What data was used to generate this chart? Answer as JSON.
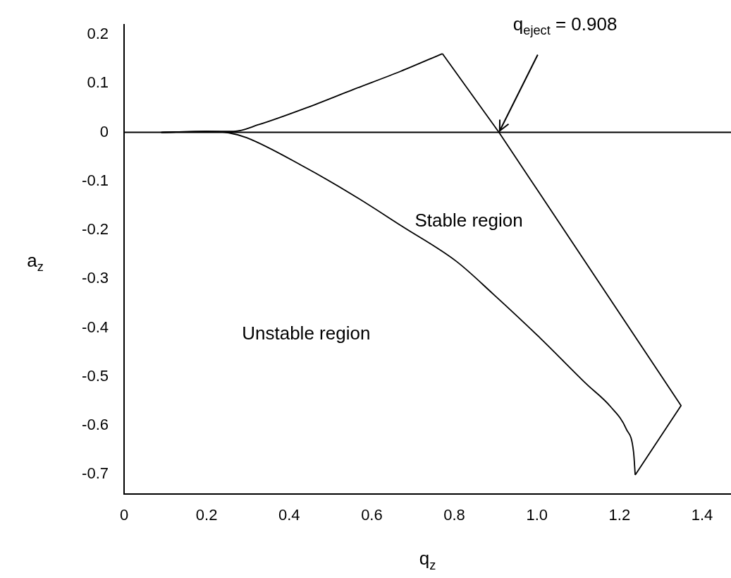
{
  "chart_data": {
    "type": "line",
    "xlabel": "q$_{z}$",
    "ylabel": "a$_{z}$",
    "xlim": [
      0,
      1.47
    ],
    "ylim": [
      -0.74,
      0.22
    ],
    "xticks": [
      0,
      0.2,
      0.4,
      0.6,
      0.8,
      {
        "value": 1,
        "label": "1.0"
      },
      1.2,
      1.4
    ],
    "yticks": [
      -0.7,
      -0.6,
      -0.5,
      -0.4,
      -0.3,
      -0.2,
      -0.1,
      0,
      0.1,
      0.2
    ],
    "grid": false,
    "legend": false,
    "marker": "none",
    "line_style": "solid",
    "series": [
      {
        "color": "#000000",
        "x": [
          0.09,
          0.195,
          0.266,
          0.327,
          0.441,
          0.556,
          0.67,
          0.771
        ],
        "values": [
          0,
          0.002,
          0.002,
          0.016,
          0.05,
          0.088,
          0.125,
          0.161
        ]
      },
      {
        "color": "#000000",
        "x": [
          0.771,
          0.908,
          1.349,
          1.238
        ],
        "values": [
          0.161,
          0,
          -0.559,
          -0.701
        ]
      },
      {
        "color": "#000000",
        "x": [
          0.09,
          0.2,
          0.254,
          0.297,
          0.435,
          0.554,
          0.673,
          0.805,
          0.893,
          1.008,
          1.12,
          1.178,
          1.217,
          1.234,
          1.238
        ],
        "values": [
          0,
          0.002,
          -0.001,
          -0.011,
          -0.07,
          -0.128,
          -0.192,
          -0.264,
          -0.33,
          -0.421,
          -0.515,
          -0.561,
          -0.608,
          -0.654,
          -0.701
        ]
      }
    ],
    "ref_lines": [
      {
        "axis": "y",
        "value": 0,
        "color": "#000000"
      }
    ],
    "annotations": [
      {
        "text": "q$_{eject}$ = 0.908",
        "x": 0.908,
        "y": 0
      },
      "Stable region",
      "Unstable region"
    ]
  }
}
